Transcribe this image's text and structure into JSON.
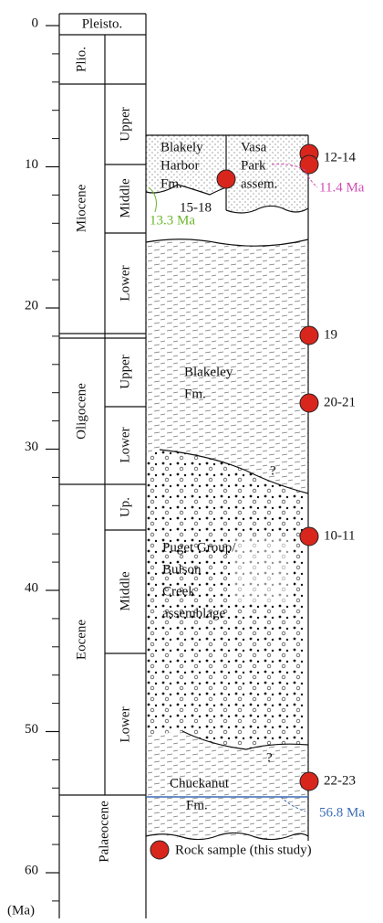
{
  "axis": {
    "ages": [
      0,
      10,
      20,
      30,
      40,
      50,
      60
    ],
    "unit": "(Ma)"
  },
  "epochs": [
    "Pleisto.",
    "Plio.",
    "Miocene",
    "Oligocene",
    "Eocene",
    "Palaeocene"
  ],
  "subdivisions": {
    "miocene": [
      "Upper",
      "Middle",
      "Lower"
    ],
    "oligocene": [
      "Upper",
      "Lower"
    ],
    "eocene": [
      "Up.",
      "Middle",
      "Lower"
    ]
  },
  "units": {
    "blakely_harbor": [
      "Blakely",
      "Harbor",
      "Fm."
    ],
    "vasa_park": [
      "Vasa",
      "Park",
      "assem."
    ],
    "blakeley": [
      "Blakeley",
      "Fm."
    ],
    "puget": [
      "Puget Group/",
      "Bulson",
      "Creek",
      "assemblage"
    ],
    "chuckanut": [
      "Chuckanut",
      "Fm."
    ],
    "uncertain": [
      "?",
      "?"
    ]
  },
  "samples": [
    "12-14",
    "15-18",
    "19",
    "20-21",
    "10-11",
    "22-23"
  ],
  "annotations": [
    "11.4 Ma",
    "13.3 Ma",
    "56.8 Ma"
  ],
  "legend": "Rock sample (this study)"
}
